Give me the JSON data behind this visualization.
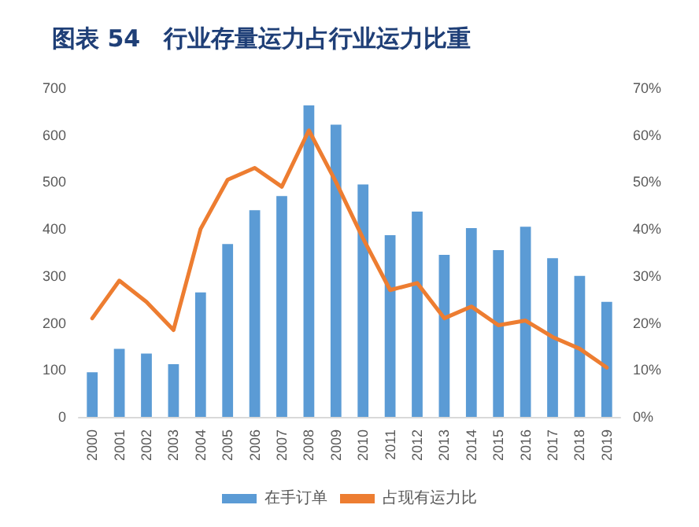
{
  "chart_data": {
    "type": "bar",
    "title": "图表 54　行业存量运力占行业运力比重",
    "categories": [
      "2000",
      "2001",
      "2002",
      "2003",
      "2004",
      "2005",
      "2006",
      "2007",
      "2008",
      "2009",
      "2010",
      "2011",
      "2012",
      "2013",
      "2014",
      "2015",
      "2016",
      "2017",
      "2018",
      "2019"
    ],
    "series": [
      {
        "name": "在手订单",
        "color": "#5b9bd5",
        "values": [
          95,
          145,
          135,
          112,
          265,
          368,
          440,
          470,
          663,
          622,
          495,
          387,
          437,
          345,
          402,
          355,
          405,
          338,
          300,
          245
        ]
      },
      {
        "name": "占现有运力比",
        "type": "line",
        "axis": "y2",
        "color": "#ed7d31",
        "values": [
          21,
          29,
          24.5,
          18.5,
          40,
          50.5,
          53,
          49,
          61,
          50,
          38,
          27,
          28.5,
          21,
          23.5,
          19.5,
          20.5,
          17,
          14.5,
          10.5
        ]
      }
    ],
    "ylim": [
      0,
      700
    ],
    "yticks": [
      0,
      100,
      200,
      300,
      400,
      500,
      600,
      700
    ],
    "y2lim": [
      0,
      70
    ],
    "y2ticks": [
      {
        "value": 0,
        "label": "0%"
      },
      {
        "value": 10,
        "label": "10%"
      },
      {
        "value": 20,
        "label": "20%"
      },
      {
        "value": 30,
        "label": "30%"
      },
      {
        "value": 40,
        "label": "40%"
      },
      {
        "value": 50,
        "label": "50%"
      },
      {
        "value": 60,
        "label": "60%"
      },
      {
        "value": 70,
        "label": "70%"
      }
    ],
    "grid": false,
    "legend": "bottom",
    "marker": "none",
    "line_style": "solid"
  }
}
